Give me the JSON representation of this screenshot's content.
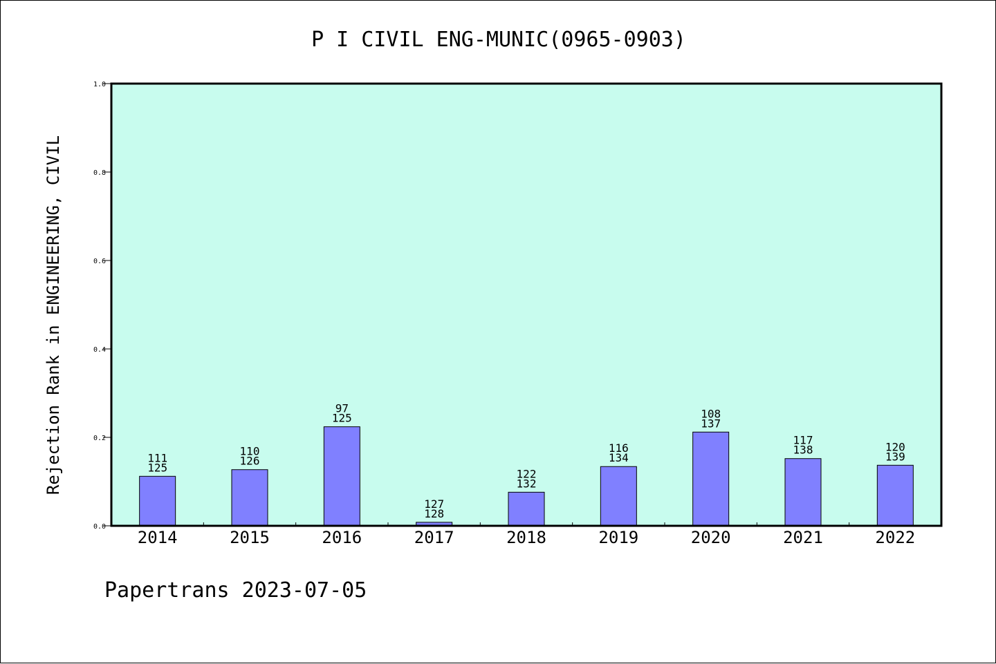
{
  "chart_data": {
    "type": "bar",
    "title": "P I CIVIL ENG-MUNIC(0965-0903)",
    "xlabel": "",
    "ylabel": "Rejection Rank in ENGINEERING, CIVIL",
    "ylim": [
      0,
      1.0
    ],
    "yticks": [
      "0.0",
      "0.2",
      "0.4",
      "0.6",
      "0.8",
      "1.0"
    ],
    "categories": [
      "2014",
      "2015",
      "2016",
      "2017",
      "2018",
      "2019",
      "2020",
      "2021",
      "2022"
    ],
    "values": [
      0.112,
      0.127,
      0.224,
      0.008,
      0.076,
      0.134,
      0.212,
      0.152,
      0.137
    ],
    "labels_top": [
      "111",
      "110",
      "97",
      "127",
      "122",
      "116",
      "108",
      "117",
      "120"
    ],
    "labels_bottom": [
      "125",
      "126",
      "125",
      "128",
      "132",
      "134",
      "137",
      "138",
      "139"
    ],
    "plot_background": "#c8fcee",
    "bar_color": "#8080ff",
    "grid": false
  },
  "footer": {
    "text": "Papertrans 2023-07-05"
  }
}
